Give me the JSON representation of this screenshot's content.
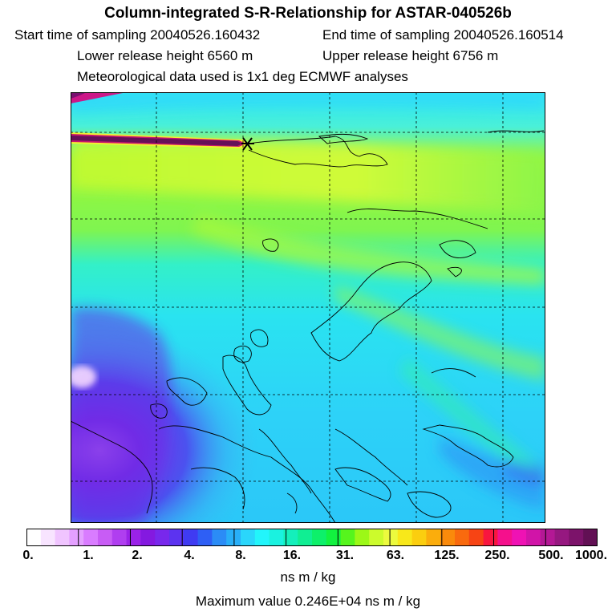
{
  "header": {
    "title": "Column-integrated S-R-Relationship for ASTAR-040526b",
    "start_time": "Start time of sampling 20040526.160432",
    "end_time": "End time of sampling 20040526.160514",
    "lower_height": "Lower release height 6560 m",
    "upper_height": "Upper release height 6756 m",
    "met_data": "Meteorological data used is 1x1 deg ECMWF analyses"
  },
  "colorbar": {
    "ticks": [
      "0.",
      "1.",
      "2.",
      "4.",
      "8.",
      "16.",
      "31.",
      "63.",
      "125.",
      "250.",
      "500.",
      "1000."
    ],
    "unit": "ns m / kg",
    "colors": [
      "#ffffff",
      "#f8e4ff",
      "#f0c4ff",
      "#e4a0ff",
      "#d97cff",
      "#c85cf5",
      "#b03ef0",
      "#9a22e8",
      "#8419e0",
      "#7828ec",
      "#5c33f0",
      "#3f3bf2",
      "#2e5ff5",
      "#2b8cf6",
      "#28aff8",
      "#2ad6fb",
      "#22f5fb",
      "#1af2e0",
      "#14efbb",
      "#10ee93",
      "#0df06a",
      "#12f23f",
      "#56f51d",
      "#9cf817",
      "#ccfb2c",
      "#ecfa3e",
      "#f8e81a",
      "#fbce0f",
      "#fbad0c",
      "#fa8a0b",
      "#f96a0e",
      "#f74414",
      "#f8163f",
      "#f5108c",
      "#ef12b4",
      "#d114a8",
      "#b41895",
      "#961880",
      "#7c136a",
      "#621054"
    ]
  },
  "footer": {
    "max_value": "Maximum value  0.246E+04 ns m / kg"
  }
}
